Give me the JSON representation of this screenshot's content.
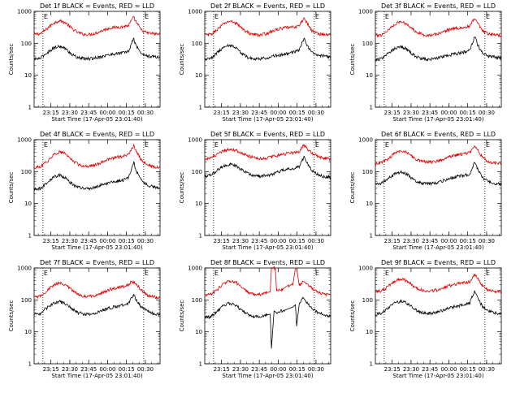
{
  "colors": {
    "events": "#000000",
    "lld": "#e00000",
    "axis": "#000000",
    "background": "#ffffff"
  },
  "axis_text": {
    "ylabel": "Counts/sec",
    "xlabel": "Start Time (17-Apr-05 23:01:40)",
    "yticks": [
      "1",
      "10",
      "100",
      "1000"
    ],
    "xticks": [
      "23:15",
      "23:30",
      "23:45",
      "00:00",
      "00:15",
      "00:30"
    ],
    "marker_left": "E",
    "marker_right": "E"
  },
  "chart_data": [
    {
      "type": "line",
      "title": "Det 1f BLACK = Events, RED = LLD",
      "x_unit": "minutes after 23:01:40",
      "xlim": [
        0,
        100
      ],
      "yscale": "log",
      "ylim": [
        1,
        1000
      ],
      "dotted_vlines": [
        7,
        87
      ],
      "series": [
        {
          "name": "LLD",
          "x": [
            0,
            5,
            10,
            15,
            20,
            25,
            30,
            35,
            40,
            45,
            50,
            55,
            60,
            65,
            70,
            75,
            77,
            79,
            81,
            85,
            90,
            95,
            100
          ],
          "y": [
            190,
            200,
            280,
            420,
            520,
            440,
            290,
            215,
            190,
            190,
            215,
            260,
            300,
            320,
            330,
            360,
            500,
            650,
            470,
            260,
            210,
            200,
            190
          ]
        },
        {
          "name": "Events",
          "x": [
            0,
            5,
            10,
            15,
            20,
            25,
            30,
            35,
            40,
            45,
            50,
            55,
            60,
            65,
            70,
            75,
            77,
            79,
            81,
            85,
            90,
            95,
            100
          ],
          "y": [
            32,
            34,
            50,
            70,
            82,
            68,
            45,
            35,
            33,
            33,
            36,
            40,
            44,
            48,
            50,
            56,
            90,
            140,
            85,
            48,
            40,
            38,
            36
          ]
        }
      ]
    },
    {
      "type": "line",
      "title": "Det 2f BLACK = Events, RED = LLD",
      "x_unit": "minutes after 23:01:40",
      "xlim": [
        0,
        100
      ],
      "yscale": "log",
      "ylim": [
        1,
        1000
      ],
      "dotted_vlines": [
        7,
        87
      ],
      "series": [
        {
          "name": "LLD",
          "x": [
            0,
            5,
            10,
            15,
            20,
            25,
            30,
            35,
            40,
            45,
            50,
            55,
            60,
            65,
            70,
            75,
            77,
            79,
            81,
            85,
            90,
            95,
            100
          ],
          "y": [
            180,
            190,
            270,
            410,
            500,
            430,
            280,
            210,
            185,
            185,
            210,
            250,
            290,
            310,
            320,
            350,
            480,
            620,
            450,
            250,
            200,
            190,
            180
          ]
        },
        {
          "name": "Events",
          "x": [
            0,
            5,
            10,
            15,
            20,
            25,
            30,
            35,
            40,
            45,
            50,
            55,
            60,
            65,
            70,
            75,
            77,
            79,
            81,
            85,
            90,
            95,
            100
          ],
          "y": [
            32,
            34,
            52,
            75,
            88,
            72,
            46,
            35,
            33,
            33,
            36,
            40,
            44,
            48,
            52,
            60,
            95,
            150,
            88,
            50,
            42,
            40,
            38
          ]
        }
      ]
    },
    {
      "type": "line",
      "title": "Det 3f BLACK = Events, RED = LLD",
      "x_unit": "minutes after 23:01:40",
      "xlim": [
        0,
        100
      ],
      "yscale": "log",
      "ylim": [
        1,
        1000
      ],
      "dotted_vlines": [
        7,
        87
      ],
      "series": [
        {
          "name": "LLD",
          "x": [
            0,
            5,
            10,
            15,
            20,
            25,
            30,
            35,
            40,
            45,
            50,
            55,
            60,
            65,
            70,
            75,
            77,
            79,
            81,
            85,
            90,
            95,
            100
          ],
          "y": [
            170,
            185,
            260,
            390,
            480,
            410,
            270,
            205,
            180,
            180,
            200,
            240,
            280,
            300,
            310,
            340,
            470,
            600,
            440,
            240,
            195,
            185,
            175
          ]
        },
        {
          "name": "Events",
          "x": [
            0,
            5,
            10,
            15,
            20,
            25,
            30,
            35,
            40,
            45,
            50,
            55,
            60,
            65,
            70,
            75,
            77,
            79,
            81,
            85,
            90,
            95,
            100
          ],
          "y": [
            30,
            33,
            48,
            68,
            80,
            66,
            44,
            34,
            32,
            32,
            35,
            40,
            44,
            48,
            52,
            60,
            100,
            175,
            95,
            50,
            40,
            37,
            35
          ]
        }
      ]
    },
    {
      "type": "line",
      "title": "Det 4f BLACK = Events, RED = LLD",
      "x_unit": "minutes after 23:01:40",
      "xlim": [
        0,
        100
      ],
      "yscale": "log",
      "ylim": [
        1,
        1000
      ],
      "dotted_vlines": [
        7,
        87
      ],
      "series": [
        {
          "name": "LLD",
          "x": [
            0,
            5,
            10,
            15,
            20,
            25,
            30,
            35,
            40,
            45,
            50,
            55,
            60,
            65,
            70,
            75,
            77,
            79,
            81,
            85,
            90,
            95,
            100
          ],
          "y": [
            130,
            140,
            200,
            320,
            420,
            360,
            230,
            170,
            150,
            150,
            170,
            210,
            250,
            280,
            300,
            340,
            480,
            650,
            460,
            230,
            160,
            140,
            130
          ]
        },
        {
          "name": "Events",
          "x": [
            0,
            5,
            10,
            15,
            20,
            25,
            30,
            35,
            40,
            45,
            50,
            55,
            60,
            65,
            70,
            75,
            77,
            79,
            81,
            85,
            90,
            95,
            100
          ],
          "y": [
            28,
            30,
            45,
            66,
            78,
            64,
            42,
            32,
            30,
            30,
            34,
            40,
            45,
            50,
            54,
            62,
            110,
            200,
            105,
            52,
            38,
            33,
            30
          ]
        }
      ]
    },
    {
      "type": "line",
      "title": "Det 5f BLACK = Events, RED = LLD",
      "x_unit": "minutes after 23:01:40",
      "xlim": [
        0,
        100
      ],
      "yscale": "log",
      "ylim": [
        1,
        1000
      ],
      "dotted_vlines": [
        7,
        87
      ],
      "series": [
        {
          "name": "LLD",
          "x": [
            0,
            5,
            10,
            15,
            20,
            25,
            30,
            35,
            40,
            45,
            50,
            55,
            60,
            65,
            70,
            75,
            77,
            79,
            81,
            85,
            90,
            95,
            100
          ],
          "y": [
            250,
            270,
            340,
            450,
            510,
            470,
            370,
            300,
            270,
            260,
            270,
            300,
            340,
            370,
            390,
            420,
            560,
            700,
            540,
            370,
            300,
            270,
            250
          ]
        },
        {
          "name": "Events",
          "x": [
            0,
            5,
            10,
            15,
            20,
            25,
            30,
            35,
            40,
            45,
            50,
            55,
            60,
            65,
            70,
            75,
            77,
            79,
            81,
            85,
            90,
            95,
            100
          ],
          "y": [
            70,
            78,
            110,
            150,
            170,
            150,
            110,
            85,
            75,
            72,
            76,
            88,
            105,
            118,
            125,
            140,
            210,
            300,
            200,
            110,
            80,
            70,
            65
          ]
        }
      ]
    },
    {
      "type": "line",
      "title": "Det 6f BLACK = Events, RED = LLD",
      "x_unit": "minutes after 23:01:40",
      "xlim": [
        0,
        100
      ],
      "yscale": "log",
      "ylim": [
        1,
        1000
      ],
      "dotted_vlines": [
        7,
        87
      ],
      "series": [
        {
          "name": "LLD",
          "x": [
            0,
            5,
            10,
            15,
            20,
            25,
            30,
            35,
            40,
            45,
            50,
            55,
            60,
            65,
            70,
            75,
            77,
            79,
            81,
            85,
            90,
            95,
            100
          ],
          "y": [
            180,
            190,
            250,
            360,
            460,
            400,
            280,
            220,
            200,
            200,
            220,
            260,
            300,
            340,
            360,
            400,
            520,
            620,
            500,
            280,
            200,
            185,
            180
          ]
        },
        {
          "name": "Events",
          "x": [
            0,
            5,
            10,
            15,
            20,
            25,
            30,
            35,
            40,
            45,
            50,
            55,
            60,
            65,
            70,
            75,
            77,
            79,
            81,
            85,
            90,
            95,
            100
          ],
          "y": [
            40,
            44,
            60,
            82,
            96,
            84,
            58,
            45,
            42,
            42,
            46,
            54,
            62,
            70,
            76,
            86,
            130,
            200,
            125,
            64,
            48,
            42,
            40
          ]
        }
      ]
    },
    {
      "type": "line",
      "title": "Det 7f BLACK = Events, RED = LLD",
      "x_unit": "minutes after 23:01:40",
      "xlim": [
        0,
        100
      ],
      "yscale": "log",
      "ylim": [
        1,
        1000
      ],
      "dotted_vlines": [
        7,
        87
      ],
      "series": [
        {
          "name": "LLD",
          "x": [
            0,
            5,
            10,
            15,
            20,
            25,
            30,
            35,
            40,
            45,
            50,
            55,
            60,
            65,
            70,
            75,
            77,
            79,
            81,
            85,
            90,
            95,
            100
          ],
          "y": [
            120,
            130,
            190,
            290,
            340,
            300,
            200,
            150,
            130,
            130,
            145,
            175,
            210,
            240,
            260,
            300,
            360,
            380,
            330,
            200,
            140,
            125,
            115
          ]
        },
        {
          "name": "Events",
          "x": [
            0,
            5,
            10,
            15,
            20,
            25,
            30,
            35,
            40,
            45,
            50,
            55,
            60,
            65,
            70,
            75,
            77,
            79,
            81,
            85,
            90,
            95,
            100
          ],
          "y": [
            35,
            38,
            55,
            78,
            88,
            76,
            52,
            40,
            36,
            36,
            40,
            48,
            56,
            62,
            68,
            80,
            110,
            140,
            105,
            60,
            44,
            38,
            35
          ]
        }
      ]
    },
    {
      "type": "line",
      "title": "Det 8f BLACK = Events, RED = LLD",
      "x_unit": "minutes after 23:01:40",
      "xlim": [
        0,
        100
      ],
      "yscale": "log",
      "ylim": [
        1,
        1000
      ],
      "dotted_vlines": [
        7,
        87
      ],
      "series": [
        {
          "name": "LLD",
          "x": [
            0,
            5,
            10,
            15,
            20,
            25,
            30,
            35,
            40,
            45,
            50,
            52,
            53,
            56,
            57,
            62,
            64,
            66,
            70,
            72,
            73,
            75,
            78,
            80,
            84,
            90,
            95,
            100
          ],
          "y": [
            140,
            150,
            210,
            330,
            400,
            350,
            230,
            170,
            150,
            150,
            170,
            180,
            1000,
            1000,
            190,
            220,
            250,
            280,
            300,
            1000,
            1000,
            280,
            380,
            350,
            250,
            180,
            150,
            140
          ]
        },
        {
          "name": "Events",
          "x": [
            0,
            5,
            10,
            15,
            20,
            25,
            30,
            35,
            40,
            45,
            50,
            52,
            53,
            55,
            57,
            60,
            64,
            66,
            68,
            70,
            72,
            73,
            75,
            78,
            80,
            84,
            90,
            95,
            100
          ],
          "y": [
            28,
            30,
            45,
            68,
            80,
            66,
            44,
            34,
            30,
            30,
            34,
            36,
            3,
            45,
            40,
            44,
            48,
            52,
            56,
            60,
            70,
            15,
            75,
            120,
            95,
            60,
            40,
            34,
            30
          ]
        }
      ]
    },
    {
      "type": "line",
      "title": "Det 9f BLACK = Events, RED = LLD",
      "x_unit": "minutes after 23:01:40",
      "xlim": [
        0,
        100
      ],
      "yscale": "log",
      "ylim": [
        1,
        1000
      ],
      "dotted_vlines": [
        7,
        87
      ],
      "series": [
        {
          "name": "LLD",
          "x": [
            0,
            5,
            10,
            15,
            20,
            25,
            30,
            35,
            40,
            45,
            50,
            55,
            60,
            65,
            70,
            75,
            77,
            79,
            81,
            85,
            90,
            95,
            100
          ],
          "y": [
            180,
            190,
            260,
            380,
            460,
            400,
            270,
            210,
            190,
            190,
            210,
            250,
            290,
            320,
            340,
            380,
            520,
            650,
            500,
            270,
            200,
            185,
            180
          ]
        },
        {
          "name": "Events",
          "x": [
            0,
            5,
            10,
            15,
            20,
            25,
            30,
            35,
            40,
            45,
            50,
            55,
            60,
            65,
            70,
            75,
            77,
            79,
            81,
            85,
            90,
            95,
            100
          ],
          "y": [
            35,
            38,
            55,
            80,
            92,
            80,
            55,
            42,
            38,
            38,
            42,
            50,
            58,
            64,
            70,
            82,
            130,
            190,
            120,
            62,
            45,
            40,
            36
          ]
        }
      ]
    }
  ]
}
